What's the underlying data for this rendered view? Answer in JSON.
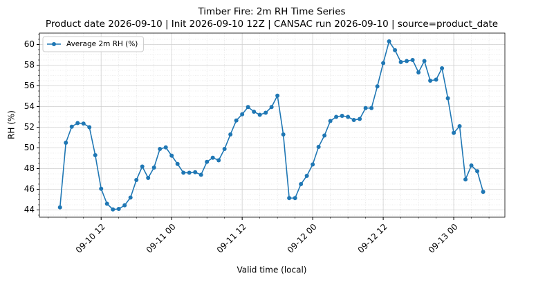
{
  "chart_data": {
    "type": "line",
    "title": "Timber Fire: 2m RH Time Series",
    "subtitle": "Product date 2026-09-10 | Init 2026-09-10 12Z | CANSAC run 2026-09-10 | source=product_date",
    "x_label": "Valid time (local)",
    "y_label": "RH (%)",
    "x": [
      "09-10 05",
      "09-10 06",
      "09-10 07",
      "09-10 08",
      "09-10 09",
      "09-10 10",
      "09-10 11",
      "09-10 12",
      "09-10 13",
      "09-10 14",
      "09-10 15",
      "09-10 16",
      "09-10 17",
      "09-10 18",
      "09-10 19",
      "09-10 20",
      "09-10 21",
      "09-10 22",
      "09-10 23",
      "09-11 00",
      "09-11 01",
      "09-11 02",
      "09-11 03",
      "09-11 04",
      "09-11 05",
      "09-11 06",
      "09-11 07",
      "09-11 08",
      "09-11 09",
      "09-11 10",
      "09-11 11",
      "09-11 12",
      "09-11 13",
      "09-11 14",
      "09-11 15",
      "09-11 16",
      "09-11 17",
      "09-11 18",
      "09-11 19",
      "09-11 20",
      "09-11 21",
      "09-11 22",
      "09-11 23",
      "09-12 00",
      "09-12 01",
      "09-12 02",
      "09-12 03",
      "09-12 04",
      "09-12 05",
      "09-12 06",
      "09-12 07",
      "09-12 08",
      "09-12 09",
      "09-12 10",
      "09-12 11",
      "09-12 12",
      "09-12 13",
      "09-12 14",
      "09-12 15",
      "09-12 16",
      "09-12 17",
      "09-12 18",
      "09-12 19",
      "09-12 20",
      "09-12 21",
      "09-12 22",
      "09-12 23",
      "09-13 00",
      "09-13 01",
      "09-13 02",
      "09-13 03",
      "09-13 04",
      "09-13 05"
    ],
    "series": [
      {
        "name": "Average 2m RH (%)",
        "color": "#1f77b4",
        "values": [
          44.25,
          50.5,
          52.05,
          52.4,
          52.35,
          52.0,
          49.3,
          46.05,
          44.6,
          44.05,
          44.1,
          44.45,
          45.2,
          46.9,
          48.2,
          47.1,
          48.1,
          49.9,
          50.05,
          49.25,
          48.45,
          47.6,
          47.6,
          47.65,
          47.4,
          48.65,
          49.05,
          48.8,
          49.9,
          51.3,
          52.65,
          53.25,
          53.95,
          53.5,
          53.2,
          53.4,
          53.95,
          55.05,
          51.3,
          45.15,
          45.15,
          46.5,
          47.3,
          48.4,
          50.1,
          51.2,
          52.6,
          53.0,
          53.1,
          53.0,
          52.7,
          52.8,
          53.85,
          53.85,
          55.95,
          58.2,
          60.3,
          59.45,
          58.3,
          58.4,
          58.5,
          57.3,
          58.4,
          56.5,
          56.6,
          57.7,
          54.8,
          51.45,
          52.1,
          46.95,
          48.3,
          47.75,
          45.75
        ]
      }
    ],
    "xlim": [
      "09-10 01:30",
      "09-13 08:42"
    ],
    "xticks": [
      "09-10 12",
      "09-11 00",
      "09-11 12",
      "09-12 00",
      "09-12 12",
      "09-13 00"
    ],
    "x_minor_interval_hours": 3,
    "ylim": [
      43.3,
      61.1
    ],
    "yticks": [
      44,
      46,
      48,
      50,
      52,
      54,
      56,
      58,
      60
    ],
    "y_minor_interval": 0.5,
    "grid": true,
    "legend": "upper left"
  }
}
